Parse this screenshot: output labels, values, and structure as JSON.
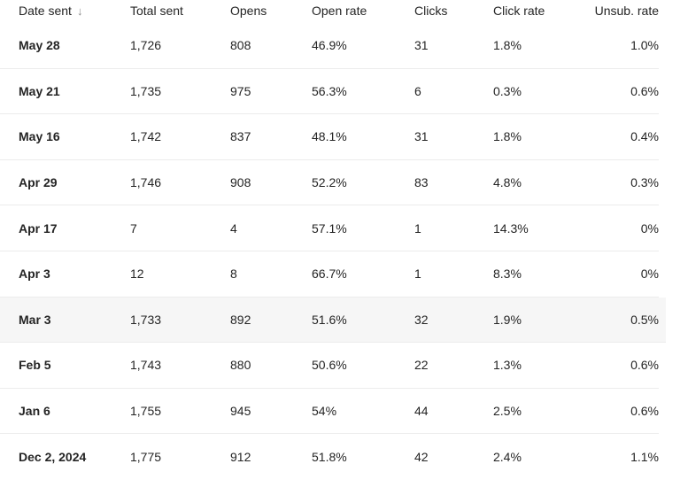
{
  "columns": {
    "date_sent": "Date sent",
    "total_sent": "Total sent",
    "opens": "Opens",
    "open_rate": "Open rate",
    "clicks": "Clicks",
    "click_rate": "Click rate",
    "unsub_rate": "Unsub. rate",
    "sort_icon": "↓"
  },
  "rows": [
    {
      "date": "May 28",
      "total": "1,726",
      "opens": "808",
      "open_rate": "46.9%",
      "clicks": "31",
      "click_rate": "1.8%",
      "unsub": "1.0%"
    },
    {
      "date": "May 21",
      "total": "1,735",
      "opens": "975",
      "open_rate": "56.3%",
      "clicks": "6",
      "click_rate": "0.3%",
      "unsub": "0.6%"
    },
    {
      "date": "May 16",
      "total": "1,742",
      "opens": "837",
      "open_rate": "48.1%",
      "clicks": "31",
      "click_rate": "1.8%",
      "unsub": "0.4%"
    },
    {
      "date": "Apr 29",
      "total": "1,746",
      "opens": "908",
      "open_rate": "52.2%",
      "clicks": "83",
      "click_rate": "4.8%",
      "unsub": "0.3%"
    },
    {
      "date": "Apr 17",
      "total": "7",
      "opens": "4",
      "open_rate": "57.1%",
      "clicks": "1",
      "click_rate": "14.3%",
      "unsub": "0%"
    },
    {
      "date": "Apr 3",
      "total": "12",
      "opens": "8",
      "open_rate": "66.7%",
      "clicks": "1",
      "click_rate": "8.3%",
      "unsub": "0%"
    },
    {
      "date": "Mar 3",
      "total": "1,733",
      "opens": "892",
      "open_rate": "51.6%",
      "clicks": "32",
      "click_rate": "1.9%",
      "unsub": "0.5%"
    },
    {
      "date": "Feb 5",
      "total": "1,743",
      "opens": "880",
      "open_rate": "50.6%",
      "clicks": "22",
      "click_rate": "1.3%",
      "unsub": "0.6%"
    },
    {
      "date": "Jan 6",
      "total": "1,755",
      "opens": "945",
      "open_rate": "54%",
      "clicks": "44",
      "click_rate": "2.5%",
      "unsub": "0.6%"
    },
    {
      "date": "Dec 2, 2024",
      "total": "1,775",
      "opens": "912",
      "open_rate": "51.8%",
      "clicks": "42",
      "click_rate": "2.4%",
      "unsub": "1.1%"
    }
  ],
  "colors": {
    "text": "#242424",
    "row_divider": "#ececec",
    "hover_row_bg": "#f6f6f6",
    "sort_icon": "#8a8a8a"
  }
}
